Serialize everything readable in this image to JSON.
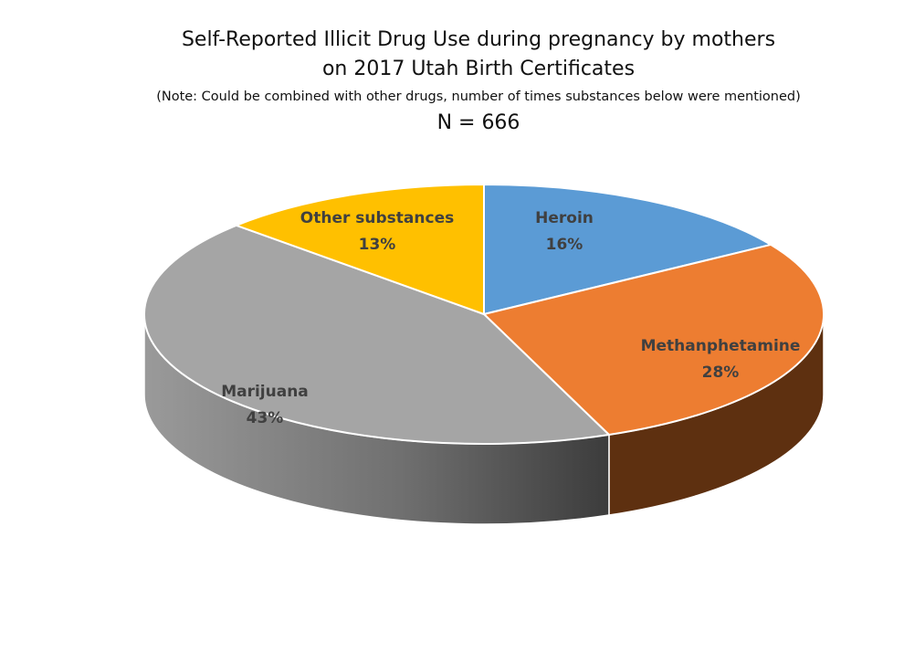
{
  "chart_data": {
    "type": "pie",
    "title": "Self-Reported Illicit Drug Use during pregnancy by mothers",
    "title_line2": "on 2017 Utah Birth Certificates",
    "subtitle": "(Note:  Could be combined with other drugs, number of times substances below were mentioned)",
    "n_label": "N = 666",
    "legend": "none",
    "slices": [
      {
        "name": "Heroin",
        "value": 16,
        "label": "16%",
        "color": "#5b9bd5",
        "side_color": "#3a6e9e"
      },
      {
        "name": "Methanphetamine",
        "value": 28,
        "label": "28%",
        "color": "#ed7d31",
        "side_color": "#5e3010"
      },
      {
        "name": "Marijuana",
        "value": 43,
        "label": "43%",
        "color": "#a5a5a5",
        "side_color": "#7a7a7a"
      },
      {
        "name": "Other substances",
        "value": 13,
        "label": "13%",
        "color": "#ffc000",
        "side_color": "#a87d00"
      }
    ]
  }
}
